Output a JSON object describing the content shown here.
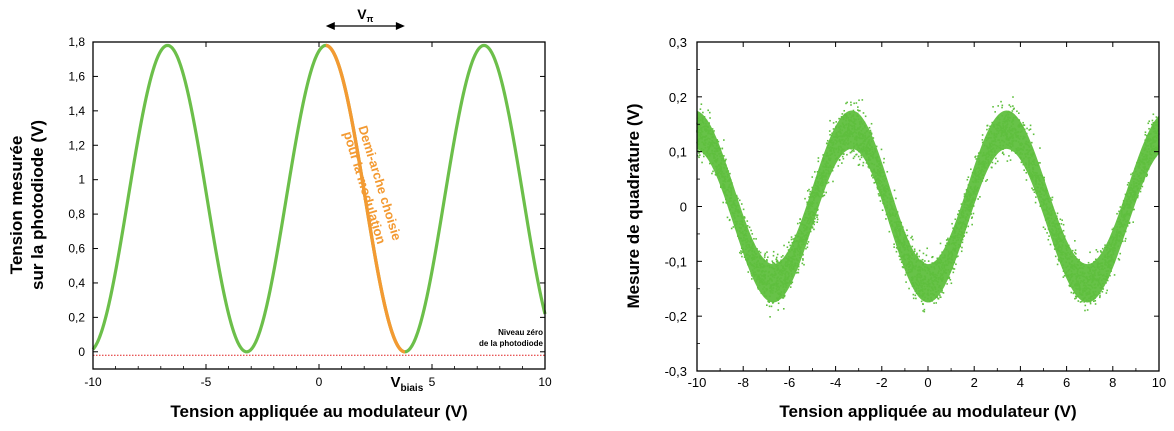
{
  "chart_data": [
    {
      "type": "line",
      "xlabel": "Tension appliquée au modulateur (V)",
      "ylabel_lines": [
        "Tension mesurée",
        "sur la photodiode (V)"
      ],
      "xlim": [
        -10,
        10
      ],
      "ylim": [
        -0.1,
        1.8
      ],
      "x_ticks": [
        -10,
        -5,
        0,
        5,
        10
      ],
      "x_tick_labels": [
        "-10",
        "-5",
        "0",
        "5",
        "10"
      ],
      "y_ticks": [
        0,
        0.2,
        0.4,
        0.6,
        0.8,
        1.0,
        1.2,
        1.4,
        1.6,
        1.8
      ],
      "y_tick_labels": [
        "0",
        "0,2",
        "0,4",
        "0,6",
        "0,8",
        "1",
        "1,2",
        "1,4",
        "1,6",
        "1,8"
      ],
      "grid": false,
      "model": {
        "amplitude": 0.89,
        "offset": 0.89,
        "half_period": 3.5,
        "phase_x0": 0.3
      },
      "highlight": {
        "x_range": [
          0.3,
          3.8
        ],
        "annotation_lines": [
          "Demi-arche choisie",
          "pour la modulation"
        ]
      },
      "zero_line": {
        "y": -0.02,
        "label_lines": [
          "Niveau zéro",
          "de la photodiode"
        ]
      },
      "v_pi_label": "V",
      "v_pi_sub": "π",
      "v_pi_range": [
        0.3,
        3.8
      ],
      "v_bias_label": "V",
      "v_bias_sub": "biais",
      "v_bias_x": 3.8,
      "colors": {
        "curve": "#6cbf4a",
        "highlight": "#f39a32",
        "zero_line": "#e02020",
        "axis": "#000000"
      }
    },
    {
      "type": "scatter",
      "xlabel": "Tension appliquée au modulateur (V)",
      "ylabel": "Mesure de quadrature (V)",
      "xlim": [
        -10,
        10
      ],
      "ylim": [
        -0.3,
        0.3
      ],
      "x_ticks": [
        -10,
        -8,
        -6,
        -4,
        -2,
        0,
        2,
        4,
        6,
        8,
        10
      ],
      "x_tick_labels": [
        "-10",
        "-8",
        "-6",
        "-4",
        "-2",
        "0",
        "2",
        "4",
        "6",
        "8",
        "10"
      ],
      "y_ticks": [
        -0.3,
        -0.2,
        -0.1,
        0,
        0.1,
        0.2,
        0.3
      ],
      "y_tick_labels": [
        "-0,3",
        "-0,2",
        "-0,1",
        "0",
        "0,1",
        "0,2",
        "0,3"
      ],
      "grid": false,
      "model": {
        "amplitude": 0.14,
        "center": 0.0,
        "peaks_x": [
          -3.3,
          3.4
        ],
        "troughs_x": [
          -6.7,
          0.0,
          6.9
        ],
        "noise_halfwidth": 0.05
      },
      "colors": {
        "points": "#5fbf3e",
        "axis": "#000000"
      }
    }
  ]
}
